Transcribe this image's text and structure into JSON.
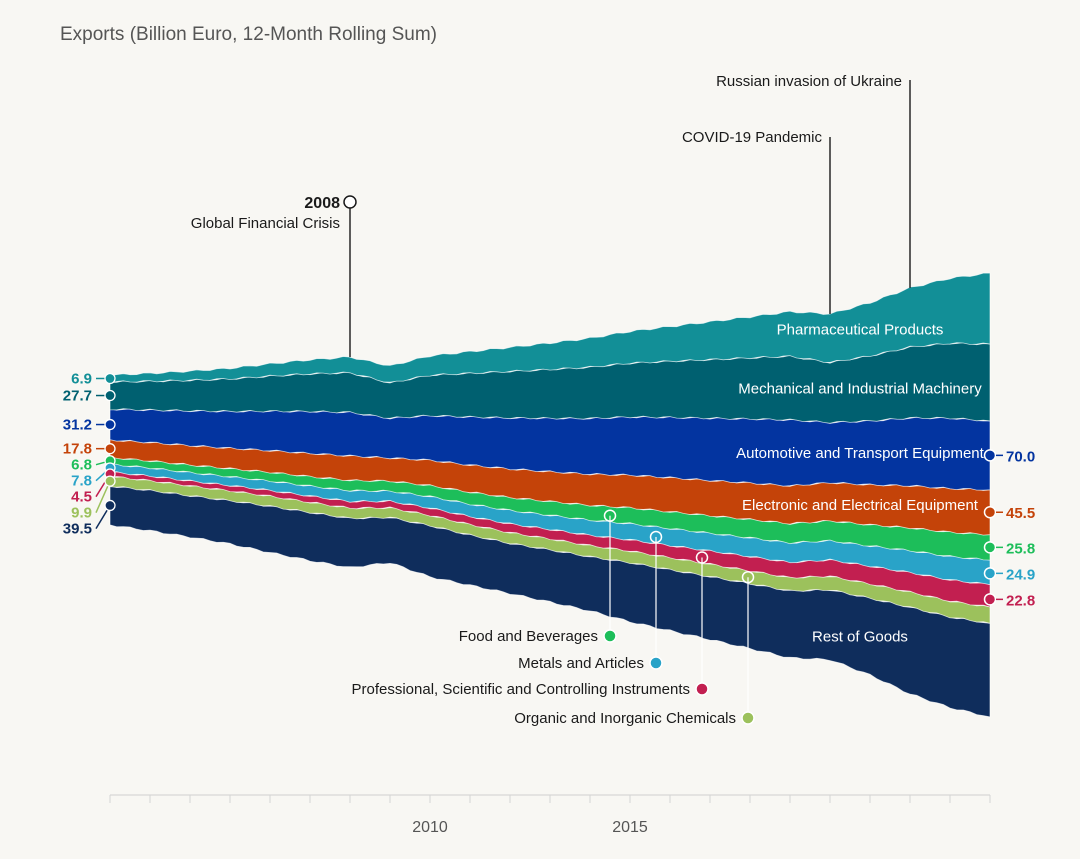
{
  "chart_data": {
    "type": "area",
    "subtype": "streamgraph",
    "title": "Exports (Billion Euro, 12-Month Rolling Sum)",
    "x": [
      2002,
      2003,
      2004,
      2005,
      2006,
      2007,
      2008,
      2009,
      2010,
      2011,
      2012,
      2013,
      2014,
      2015,
      2016,
      2017,
      2018,
      2019,
      2020,
      2021,
      2022,
      2023,
      2024
    ],
    "xticks": [
      "2010",
      "2015"
    ],
    "series": [
      {
        "name": "Rest of Goods",
        "color": "#0f2d5c",
        "start_label": "39.5",
        "values": [
          39.5,
          41,
          42,
          44,
          47,
          49,
          50,
          46,
          52,
          51,
          51,
          53,
          55,
          60,
          62,
          64,
          66,
          68,
          71,
          78,
          88,
          92,
          95
        ]
      },
      {
        "name": "Organic and Inorganic Chemicals",
        "color": "#9cc15c",
        "start_label": "9.9",
        "values": [
          9.9,
          9.9,
          10,
          10,
          10.2,
          10.3,
          10.4,
          9.8,
          10.5,
          10.7,
          10.9,
          11.1,
          11.4,
          11.8,
          12.2,
          12.6,
          13,
          13.4,
          13.8,
          14.5,
          15.5,
          16.2,
          16.5
        ]
      },
      {
        "name": "Professional, Scientific and Controlling Instruments",
        "color": "#c21f50",
        "start_label": "4.5",
        "end_label": "22.8",
        "values": [
          4.5,
          4.7,
          5,
          5.4,
          5.9,
          6.3,
          6.8,
          6.6,
          7.4,
          8.1,
          8.9,
          9.6,
          10.4,
          11.4,
          12.4,
          13.4,
          14.5,
          15.6,
          16.6,
          18,
          19.8,
          21.5,
          22.8
        ]
      },
      {
        "name": "Metals and Articles",
        "color": "#29a3c8",
        "start_label": "7.8",
        "end_label": "24.9",
        "values": [
          7.8,
          8.2,
          8.5,
          8.9,
          9.5,
          10.2,
          11,
          10.3,
          11.7,
          12.6,
          13.6,
          14.4,
          15.4,
          16.4,
          17.2,
          18,
          19,
          19.8,
          19.4,
          20.6,
          22.2,
          23.8,
          24.9
        ]
      },
      {
        "name": "Food and Beverages",
        "color": "#1dbe5a",
        "start_label": "6.8",
        "end_label": "25.8",
        "values": [
          6.8,
          7.2,
          7.7,
          8.2,
          8.9,
          9.6,
          10.4,
          10.2,
          11.1,
          12.1,
          13.1,
          14,
          15,
          16.1,
          17,
          17.8,
          18.7,
          19.5,
          20.2,
          21.4,
          23.1,
          24.6,
          25.8
        ]
      },
      {
        "name": "Electronic and Electrical Equipment",
        "color": "#c44309",
        "start_label": "17.8",
        "end_label": "45.5",
        "values": [
          17.8,
          18.6,
          19.7,
          20.7,
          22,
          23.5,
          24.8,
          23.4,
          25.8,
          27.5,
          29,
          30.2,
          31.6,
          33.2,
          34.6,
          35.7,
          37,
          38.3,
          38.8,
          40.6,
          42.8,
          44.3,
          45.5
        ]
      },
      {
        "name": "Automotive and  Transport Equipment",
        "color": "#0334a0",
        "start_label": "31.2",
        "end_label": "70.0",
        "values": [
          31.2,
          33,
          35.2,
          37.4,
          40,
          42.6,
          44.2,
          40.4,
          45.2,
          48.8,
          51.8,
          54.2,
          56.6,
          59,
          61.2,
          63.2,
          65,
          67,
          61,
          64.8,
          68.8,
          71.5,
          70.0
        ]
      },
      {
        "name": "Mechanical and Industrial Machinery",
        "color": "#006070",
        "start_label": "27.7",
        "values": [
          27.7,
          29.2,
          31,
          33,
          35.6,
          38.2,
          40.2,
          35.8,
          41,
          44.4,
          47.2,
          49.6,
          52,
          54.6,
          57,
          59.5,
          62,
          64.6,
          61,
          66,
          72,
          76,
          78
        ]
      },
      {
        "name": "Pharmaceutical Products",
        "color": "#128f97",
        "start_label": "6.9",
        "values": [
          6.9,
          8,
          9.3,
          10.7,
          12.4,
          14.2,
          16,
          17.2,
          19.6,
          22,
          24.4,
          26.8,
          29.4,
          32.2,
          35.2,
          38.4,
          41.6,
          45.2,
          49.2,
          54,
          60,
          66,
          72
        ]
      }
    ],
    "annotations": [
      {
        "year": "2008",
        "text": "Global Financial Crisis"
      },
      {
        "text": "COVID-19 Pandemic"
      },
      {
        "text": "Russian invasion of Ukraine"
      }
    ],
    "callouts": [
      "Food and Beverages",
      "Metals and Articles",
      "Professional, Scientific and Controlling Instruments",
      "Organic and Inorganic Chemicals"
    ]
  }
}
